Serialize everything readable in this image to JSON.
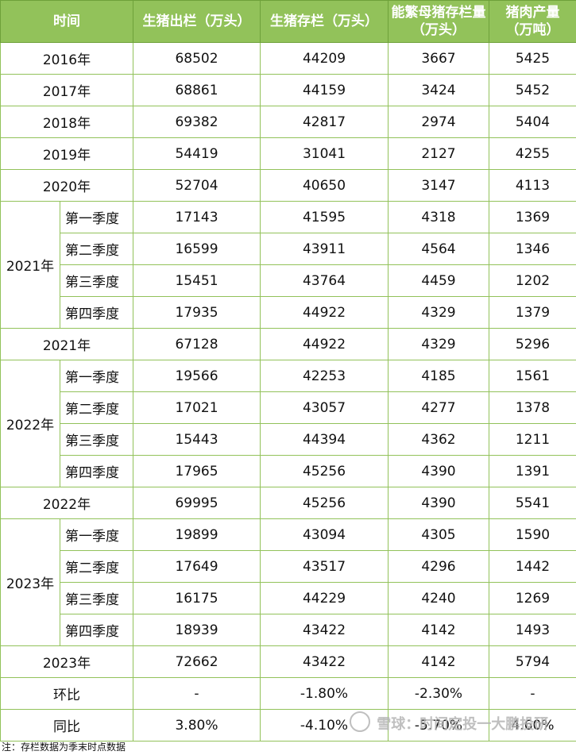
{
  "headers": [
    "时间",
    "生猪出栏（万头）",
    "生猪存栏（万头）",
    "能繁母猪存栏量（万头）",
    "猪肉产量（万吨）"
  ],
  "year_rows": {
    "y2016": [
      "2016年",
      "68502",
      "44209",
      "3667",
      "5425"
    ],
    "y2017": [
      "2017年",
      "68861",
      "44159",
      "3424",
      "5452"
    ],
    "y2018": [
      "2018年",
      "69382",
      "42817",
      "2974",
      "5404"
    ],
    "y2019": [
      "2019年",
      "54419",
      "31041",
      "2127",
      "4255"
    ],
    "y2020": [
      "2020年",
      "52704",
      "40650",
      "3147",
      "4113"
    ]
  },
  "groups": [
    {
      "year_label": "2021年",
      "quarters": [
        [
          "第一季度",
          "17143",
          "41595",
          "4318",
          "1369"
        ],
        [
          "第二季度",
          "16599",
          "43911",
          "4564",
          "1346"
        ],
        [
          "第三季度",
          "15451",
          "43764",
          "4459",
          "1202"
        ],
        [
          "第四季度",
          "17935",
          "44922",
          "4329",
          "1379"
        ]
      ],
      "total": [
        "2021年",
        "67128",
        "44922",
        "4329",
        "5296"
      ]
    },
    {
      "year_label": "2022年",
      "quarters": [
        [
          "第一季度",
          "19566",
          "42253",
          "4185",
          "1561"
        ],
        [
          "第二季度",
          "17021",
          "43057",
          "4277",
          "1378"
        ],
        [
          "第三季度",
          "15443",
          "44394",
          "4362",
          "1211"
        ],
        [
          "第四季度",
          "17965",
          "45256",
          "4390",
          "1391"
        ]
      ],
      "total": [
        "2022年",
        "69995",
        "45256",
        "4390",
        "5541"
      ]
    },
    {
      "year_label": "2023年",
      "quarters": [
        [
          "第一季度",
          "19899",
          "43094",
          "4305",
          "1590"
        ],
        [
          "第二季度",
          "17649",
          "43517",
          "4296",
          "1442"
        ],
        [
          "第三季度",
          "16175",
          "44229",
          "4240",
          "1269"
        ],
        [
          "第四季度",
          "18939",
          "43422",
          "4142",
          "1493"
        ]
      ],
      "total": [
        "2023年",
        "72662",
        "43422",
        "4142",
        "5794"
      ]
    }
  ],
  "change_rows": {
    "qoq": [
      "环比",
      "-",
      "-1.80%",
      "-2.30%",
      "-"
    ],
    "yoy": [
      "同比",
      "3.80%",
      "-4.10%",
      "-5.70%",
      "4.60%"
    ]
  },
  "note": "注：存栏数据为季末时点数据",
  "watermark": "雪球：时间定投一大鹏投研"
}
